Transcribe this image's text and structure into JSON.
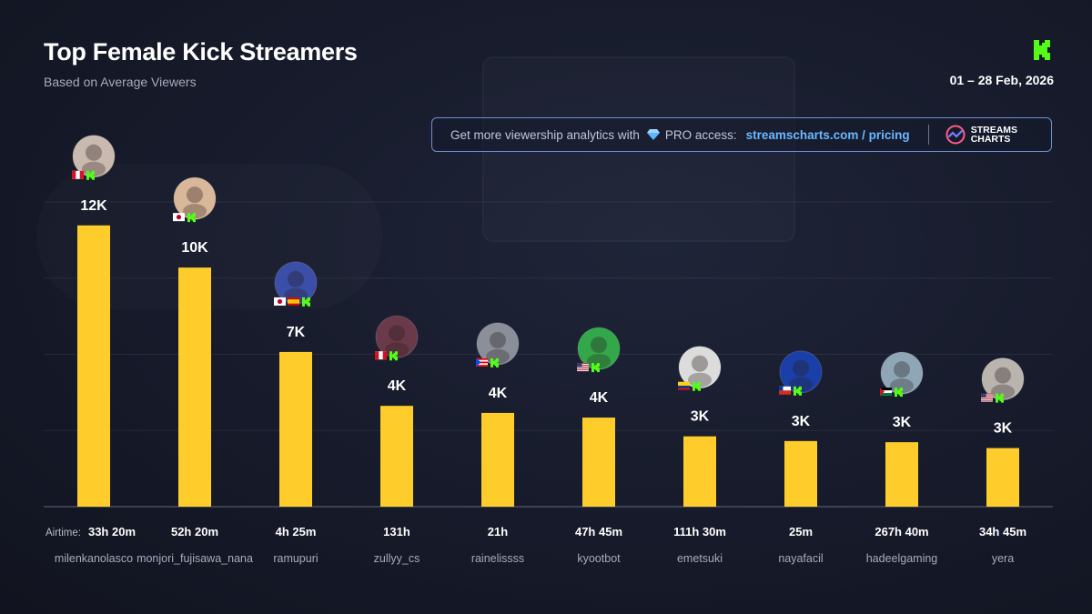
{
  "header": {
    "title": "Top Female Kick Streamers",
    "subtitle": "Based on Average Viewers",
    "date_range": "01 – 28 Feb, 2026"
  },
  "promo": {
    "text": "Get more viewership analytics with",
    "pro_label": "PRO access:",
    "link": "streamscharts.com / pricing",
    "logo_text_1": "STREAMS",
    "logo_text_2": "CHARTS"
  },
  "colors": {
    "bar": "#ffcd2b",
    "kick_green": "#53fc18",
    "accent_link": "#6ab7ff"
  },
  "chart_data": {
    "type": "bar",
    "title": "Top Female Kick Streamers",
    "subtitle": "Based on Average Viewers",
    "categories": [
      "milenkanolasco",
      "monjori_fujisawa_nana",
      "ramupuri",
      "zullyy_cs",
      "rainelissss",
      "kyootbot",
      "emetsuki",
      "nayafacil",
      "hadeelgaming",
      "yera"
    ],
    "values": [
      12000,
      10200,
      6600,
      4300,
      4000,
      3800,
      3000,
      2800,
      2750,
      2500
    ],
    "value_labels": [
      "12K",
      "10K",
      "7K",
      "4K",
      "4K",
      "4K",
      "3K",
      "3K",
      "3K",
      "3K"
    ],
    "airtime_caption": "Airtime:",
    "airtime": [
      "33h 20m",
      "52h 20m",
      "4h 25m",
      "131h",
      "21h",
      "47h 45m",
      "111h 30m",
      "25m",
      "267h 40m",
      "34h 45m"
    ],
    "flags": [
      [
        "peru"
      ],
      [
        "japan"
      ],
      [
        "japan",
        "spain"
      ],
      [
        "peru"
      ],
      [
        "puerto-rico"
      ],
      [
        "usa"
      ],
      [
        "colombia"
      ],
      [
        "chile"
      ],
      [
        "palestine"
      ],
      [
        "usa"
      ]
    ],
    "avatar_colors": [
      "#c9b9ae",
      "#d9b79a",
      "#3b4ea8",
      "#6b3a4a",
      "#8a8f9a",
      "#33a84a",
      "#dcdcdc",
      "#1b3fa8",
      "#8ea6b6",
      "#b9b4ae"
    ],
    "ylim": [
      0,
      13000
    ],
    "grid": true,
    "legend": "none"
  }
}
